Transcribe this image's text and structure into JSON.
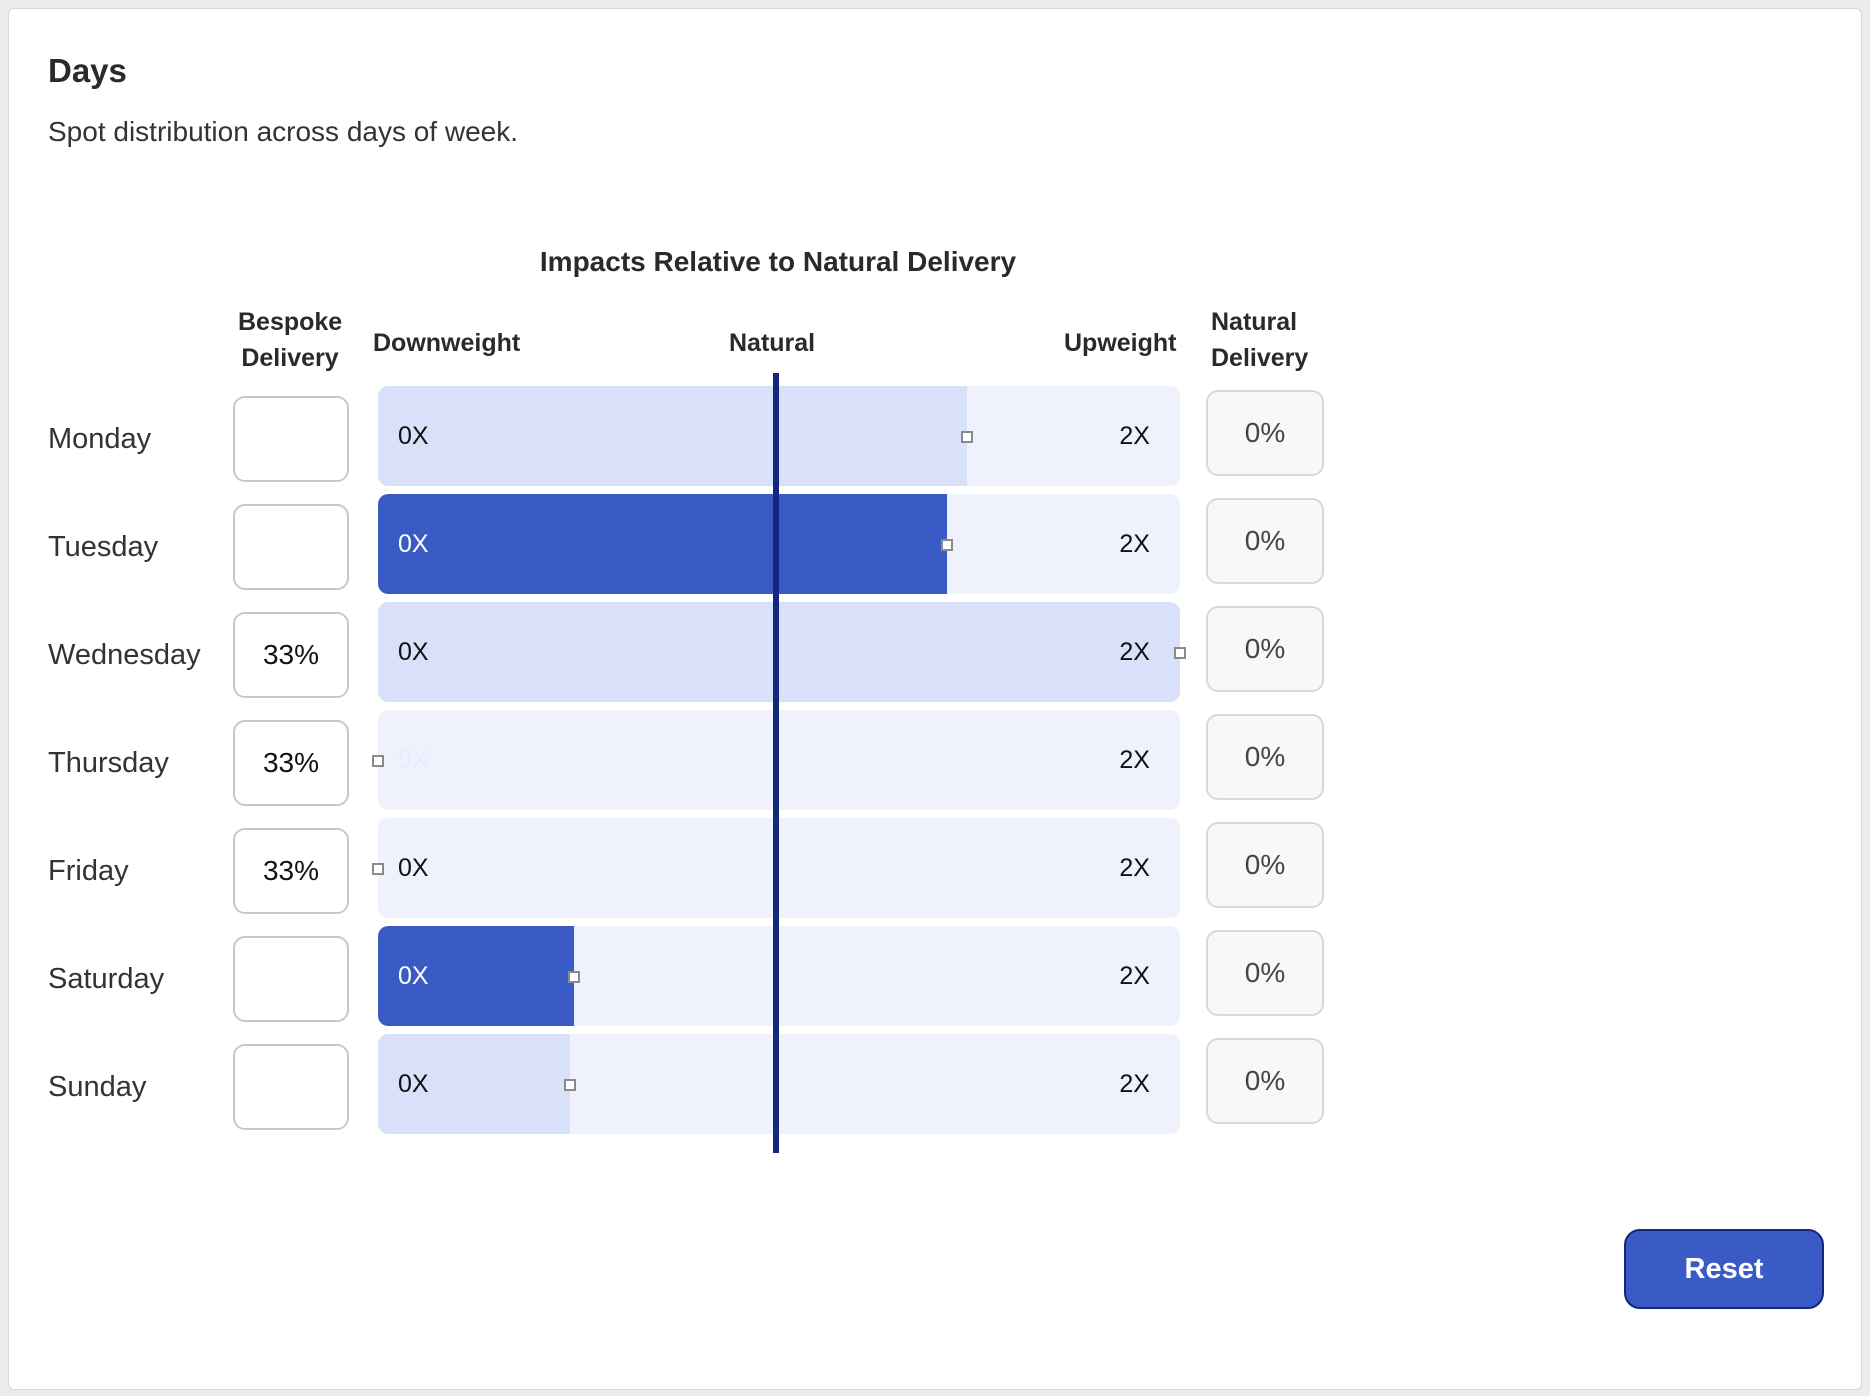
{
  "section": {
    "title": "Days",
    "subtitle": "Spot distribution across days of week."
  },
  "chart": {
    "title": "Impacts Relative to Natural Delivery",
    "columns": {
      "bespoke_line1": "Bespoke",
      "bespoke_line2": "Delivery",
      "downweight": "Downweight",
      "natural": "Natural",
      "upweight": "Upweight",
      "natural_line1": "Natural",
      "natural_line2": "Delivery"
    },
    "scale_min_label": "0X",
    "scale_max_label": "2X",
    "scale_min": 0,
    "scale_max": 2,
    "natural_value": 1
  },
  "days": [
    {
      "name": "Monday",
      "bespoke": "",
      "weight": 1.47,
      "fill_style": "light",
      "natural_delivery": "0%"
    },
    {
      "name": "Tuesday",
      "bespoke": "",
      "weight": 1.42,
      "fill_style": "strong",
      "natural_delivery": "0%"
    },
    {
      "name": "Wednesday",
      "bespoke": "33%",
      "weight": 2.0,
      "fill_style": "light",
      "natural_delivery": "0%"
    },
    {
      "name": "Thursday",
      "bespoke": "33%",
      "weight": 0.0,
      "fill_style": "light",
      "natural_delivery": "0%"
    },
    {
      "name": "Friday",
      "bespoke": "33%",
      "weight": 0.0,
      "fill_style": "light",
      "natural_delivery": "0%"
    },
    {
      "name": "Saturday",
      "bespoke": "",
      "weight": 0.49,
      "fill_style": "strong",
      "natural_delivery": "0%"
    },
    {
      "name": "Sunday",
      "bespoke": "",
      "weight": 0.48,
      "fill_style": "light",
      "natural_delivery": "0%"
    }
  ],
  "actions": {
    "reset_label": "Reset"
  },
  "colors": {
    "accent": "#3a5ac6",
    "track": "#eff2fd",
    "fill_light": "#d9e0fa",
    "natural_line": "#14277c"
  }
}
